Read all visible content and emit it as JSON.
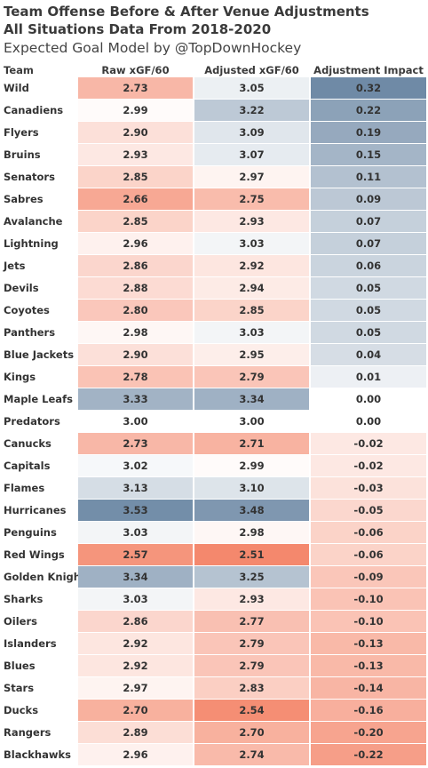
{
  "title_line1": "Team Offense Before & After Venue Adjustments",
  "title_line2": "All Situations Data From 2018-2020",
  "subtitle": "Expected Goal Model by @TopDownHockey",
  "chart_data": {
    "type": "table",
    "columns": [
      "Team",
      "Raw xGF/60",
      "Adjusted xGF/60",
      "Adjustment Impact"
    ],
    "rows": [
      {
        "team": "Wild",
        "raw": "2.73",
        "adj": "3.05",
        "impact": "0.32"
      },
      {
        "team": "Canadiens",
        "raw": "2.99",
        "adj": "3.22",
        "impact": "0.22"
      },
      {
        "team": "Flyers",
        "raw": "2.90",
        "adj": "3.09",
        "impact": "0.19"
      },
      {
        "team": "Bruins",
        "raw": "2.93",
        "adj": "3.07",
        "impact": "0.15"
      },
      {
        "team": "Senators",
        "raw": "2.85",
        "adj": "2.97",
        "impact": "0.11"
      },
      {
        "team": "Sabres",
        "raw": "2.66",
        "adj": "2.75",
        "impact": "0.09"
      },
      {
        "team": "Avalanche",
        "raw": "2.85",
        "adj": "2.93",
        "impact": "0.07"
      },
      {
        "team": "Lightning",
        "raw": "2.96",
        "adj": "3.03",
        "impact": "0.07"
      },
      {
        "team": "Jets",
        "raw": "2.86",
        "adj": "2.92",
        "impact": "0.06"
      },
      {
        "team": "Devils",
        "raw": "2.88",
        "adj": "2.94",
        "impact": "0.05"
      },
      {
        "team": "Coyotes",
        "raw": "2.80",
        "adj": "2.85",
        "impact": "0.05"
      },
      {
        "team": "Panthers",
        "raw": "2.98",
        "adj": "3.03",
        "impact": "0.05"
      },
      {
        "team": "Blue Jackets",
        "raw": "2.90",
        "adj": "2.95",
        "impact": "0.04"
      },
      {
        "team": "Kings",
        "raw": "2.78",
        "adj": "2.79",
        "impact": "0.01"
      },
      {
        "team": "Maple Leafs",
        "raw": "3.33",
        "adj": "3.34",
        "impact": "0.00"
      },
      {
        "team": "Predators",
        "raw": "3.00",
        "adj": "3.00",
        "impact": "0.00"
      },
      {
        "team": "Canucks",
        "raw": "2.73",
        "adj": "2.71",
        "impact": "-0.02"
      },
      {
        "team": "Capitals",
        "raw": "3.02",
        "adj": "2.99",
        "impact": "-0.02"
      },
      {
        "team": "Flames",
        "raw": "3.13",
        "adj": "3.10",
        "impact": "-0.03"
      },
      {
        "team": "Hurricanes",
        "raw": "3.53",
        "adj": "3.48",
        "impact": "-0.05"
      },
      {
        "team": "Penguins",
        "raw": "3.03",
        "adj": "2.98",
        "impact": "-0.06"
      },
      {
        "team": "Red Wings",
        "raw": "2.57",
        "adj": "2.51",
        "impact": "-0.06"
      },
      {
        "team": "Golden Knights",
        "raw": "3.34",
        "adj": "3.25",
        "impact": "-0.09"
      },
      {
        "team": "Sharks",
        "raw": "3.03",
        "adj": "2.93",
        "impact": "-0.10"
      },
      {
        "team": "Oilers",
        "raw": "2.86",
        "adj": "2.77",
        "impact": "-0.10"
      },
      {
        "team": "Islanders",
        "raw": "2.92",
        "adj": "2.79",
        "impact": "-0.13"
      },
      {
        "team": "Blues",
        "raw": "2.92",
        "adj": "2.79",
        "impact": "-0.13"
      },
      {
        "team": "Stars",
        "raw": "2.97",
        "adj": "2.83",
        "impact": "-0.14"
      },
      {
        "team": "Ducks",
        "raw": "2.70",
        "adj": "2.54",
        "impact": "-0.16"
      },
      {
        "team": "Rangers",
        "raw": "2.89",
        "adj": "2.70",
        "impact": "-0.20"
      },
      {
        "team": "Blackhawks",
        "raw": "2.96",
        "adj": "2.74",
        "impact": "-0.22"
      }
    ],
    "color_scale": {
      "low_color": "#f4866a",
      "neutral_color": "#ffffff",
      "high_color": "#6f8aa6",
      "xgf_low": 2.5,
      "xgf_mid": 3.0,
      "xgf_high": 3.55,
      "impact_low": -0.32,
      "impact_high": 0.32
    }
  }
}
